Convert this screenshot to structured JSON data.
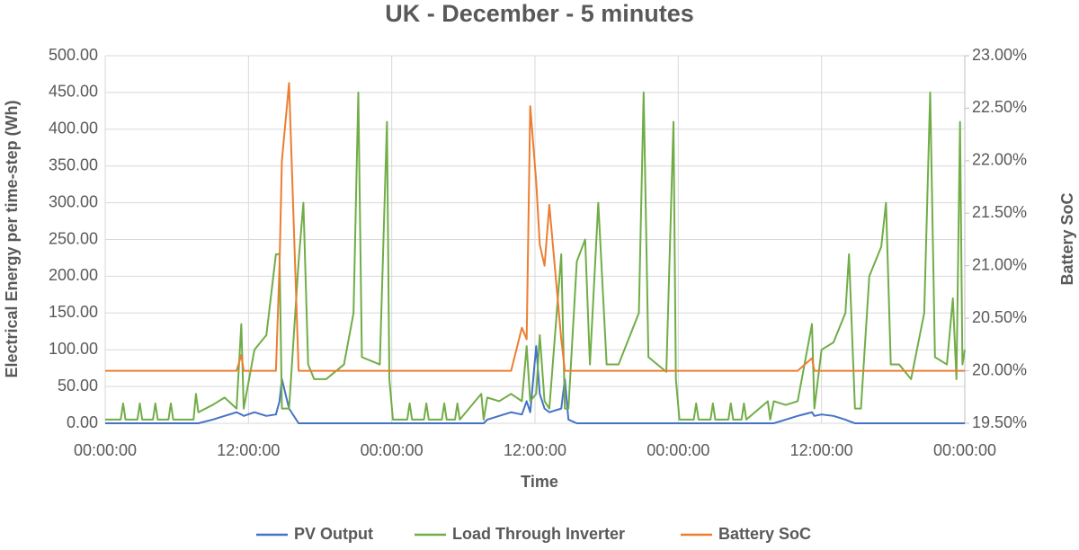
{
  "chart_data": {
    "type": "line",
    "title": "UK - December - 5 minutes",
    "x_label": "Time",
    "y_label": "Electrical Energy per time-step (Wh)",
    "y2_label": "Battery SoC",
    "xlim": [
      0,
      72
    ],
    "xticks": [
      {
        "value": 0,
        "label": "00:00:00"
      },
      {
        "value": 12,
        "label": "12:00:00"
      },
      {
        "value": 24,
        "label": "00:00:00"
      },
      {
        "value": 36,
        "label": "12:00:00"
      },
      {
        "value": 48,
        "label": "00:00:00"
      },
      {
        "value": 60,
        "label": "12:00:00"
      },
      {
        "value": 72,
        "label": "00:00:00"
      }
    ],
    "ylim": [
      0,
      500
    ],
    "yticks": [
      {
        "value": 0,
        "label": "0.00"
      },
      {
        "value": 50,
        "label": "50.00"
      },
      {
        "value": 100,
        "label": "100.00"
      },
      {
        "value": 150,
        "label": "150.00"
      },
      {
        "value": 200,
        "label": "200.00"
      },
      {
        "value": 250,
        "label": "250.00"
      },
      {
        "value": 300,
        "label": "300.00"
      },
      {
        "value": 350,
        "label": "350.00"
      },
      {
        "value": 400,
        "label": "400.00"
      },
      {
        "value": 450,
        "label": "450.00"
      },
      {
        "value": 500,
        "label": "500.00"
      }
    ],
    "y2lim": [
      19.5,
      23
    ],
    "y2ticks": [
      {
        "value": 19.5,
        "label": "19.50%"
      },
      {
        "value": 20,
        "label": "20.00%"
      },
      {
        "value": 20.5,
        "label": "20.50%"
      },
      {
        "value": 21,
        "label": "21.00%"
      },
      {
        "value": 21.5,
        "label": "21.50%"
      },
      {
        "value": 22,
        "label": "22.00%"
      },
      {
        "value": 22.5,
        "label": "22.50%"
      },
      {
        "value": 23,
        "label": "23.00%"
      }
    ],
    "grid": true,
    "legend": "bottom",
    "x": [
      0,
      1.3,
      1.5,
      1.7,
      2.7,
      2.9,
      3.1,
      4.0,
      4.2,
      4.4,
      5.3,
      5.5,
      5.7,
      7.4,
      7.6,
      7.8,
      9,
      10,
      11,
      11.4,
      11.6,
      12.5,
      13.5,
      14.3,
      14.6,
      14.8,
      15.4,
      16.2,
      16.6,
      17,
      17.5,
      18.5,
      20,
      20.8,
      21.2,
      21.5,
      23,
      23.6,
      23.8,
      24.1,
      25.3,
      25.5,
      25.7,
      26.7,
      26.9,
      27.1,
      28.2,
      28.4,
      28.6,
      29.3,
      29.5,
      29.7,
      31.5,
      31.7,
      32,
      33,
      34,
      34.9,
      35.3,
      35.6,
      36.1,
      36.4,
      36.8,
      37.2,
      38.2,
      38.5,
      38.8,
      39.5,
      40.2,
      40.6,
      41.3,
      42,
      43,
      44.7,
      45.1,
      45.5,
      47,
      47.6,
      47.8,
      48.1,
      49.3,
      49.5,
      49.7,
      50.7,
      50.9,
      51.1,
      52.2,
      52.4,
      52.6,
      53.3,
      53.5,
      53.7,
      55.5,
      55.7,
      56,
      57,
      58,
      59.2,
      59.4,
      60,
      61,
      62,
      62.3,
      62.8,
      63.3,
      64,
      65,
      65.4,
      65.8,
      66.5,
      67.5,
      68.6,
      69.1,
      69.5,
      70.5,
      71,
      71.3,
      71.6,
      71.8,
      72
    ],
    "series": [
      {
        "name": "PV Output",
        "color": "#4472c4",
        "values": [
          0,
          0,
          0,
          0,
          0,
          0,
          0,
          0,
          0,
          0,
          0,
          0,
          0,
          0,
          0,
          0,
          5,
          10,
          15,
          12,
          10,
          15,
          10,
          12,
          30,
          60,
          20,
          0,
          0,
          0,
          0,
          0,
          0,
          0,
          0,
          0,
          0,
          0,
          0,
          0,
          0,
          0,
          0,
          0,
          0,
          0,
          0,
          0,
          0,
          0,
          0,
          0,
          0,
          0,
          5,
          10,
          15,
          12,
          30,
          15,
          105,
          40,
          20,
          15,
          20,
          60,
          5,
          0,
          0,
          0,
          0,
          0,
          0,
          0,
          0,
          0,
          0,
          0,
          0,
          0,
          0,
          0,
          0,
          0,
          0,
          0,
          0,
          0,
          0,
          0,
          0,
          0,
          0,
          0,
          0,
          5,
          10,
          15,
          10,
          12,
          10,
          5,
          3,
          0,
          0,
          0,
          0,
          0,
          0,
          0,
          0,
          0,
          0,
          0,
          0,
          0,
          0,
          0,
          0,
          0
        ]
      },
      {
        "name": "Load Through Inverter",
        "color": "#70ad47",
        "values": [
          5,
          5,
          27,
          5,
          5,
          27,
          5,
          5,
          27,
          5,
          5,
          27,
          5,
          5,
          40,
          15,
          25,
          35,
          20,
          135,
          20,
          100,
          120,
          230,
          230,
          20,
          20,
          220,
          300,
          80,
          60,
          60,
          80,
          150,
          450,
          90,
          80,
          410,
          60,
          5,
          5,
          27,
          5,
          5,
          27,
          5,
          5,
          27,
          5,
          5,
          27,
          5,
          40,
          5,
          35,
          30,
          40,
          30,
          105,
          30,
          40,
          120,
          30,
          20,
          230,
          20,
          20,
          220,
          250,
          80,
          300,
          80,
          80,
          150,
          450,
          90,
          70,
          410,
          60,
          5,
          5,
          27,
          5,
          5,
          27,
          5,
          5,
          27,
          5,
          5,
          27,
          5,
          30,
          5,
          30,
          25,
          30,
          135,
          20,
          100,
          110,
          150,
          230,
          20,
          20,
          200,
          240,
          300,
          80,
          80,
          60,
          150,
          450,
          90,
          80,
          170,
          60,
          410,
          80,
          100
        ]
      },
      {
        "name": "Battery SoC",
        "color": "#ed7d31",
        "axis": "y2",
        "values": [
          20,
          20,
          20,
          20,
          20,
          20,
          20,
          20,
          20,
          20,
          20,
          20,
          20,
          20,
          20,
          20,
          20,
          20,
          20,
          20.15,
          20,
          20,
          20,
          20,
          21,
          22,
          22.74,
          20,
          20,
          20,
          20,
          20,
          20,
          20,
          20,
          20,
          20,
          20,
          20,
          20,
          20,
          20,
          20,
          20,
          20,
          20,
          20,
          20,
          20,
          20,
          20,
          20,
          20,
          20,
          20,
          20,
          20,
          20.41,
          20.3,
          22.52,
          21.8,
          21.2,
          21,
          21.58,
          20.3,
          20,
          20,
          20,
          20,
          20,
          20,
          20,
          20,
          20,
          20,
          20,
          20,
          20,
          20,
          20,
          20,
          20,
          20,
          20,
          20,
          20,
          20,
          20,
          20,
          20,
          20,
          20,
          20,
          20,
          20,
          20,
          20,
          20.12,
          20,
          20,
          20,
          20,
          20,
          20,
          20,
          20,
          20,
          20,
          20,
          20,
          20,
          20,
          20,
          20,
          20,
          20,
          20,
          20,
          20,
          20
        ]
      }
    ]
  }
}
